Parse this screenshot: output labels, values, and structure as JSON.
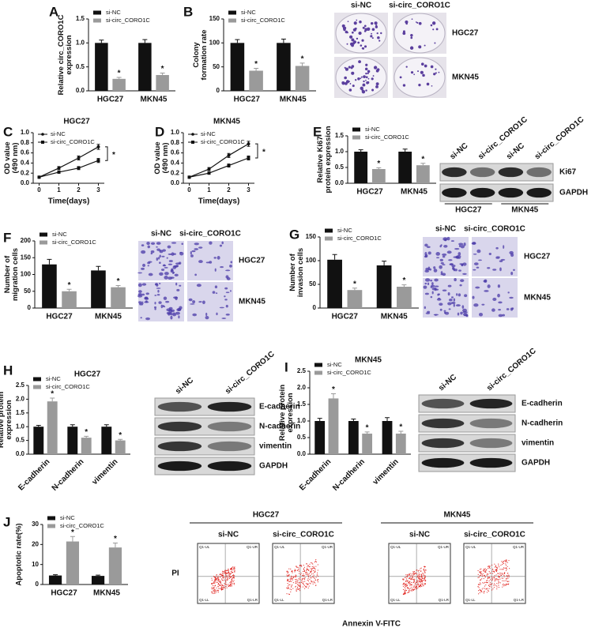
{
  "chart_data": [
    {
      "type": "bar",
      "panel": "A",
      "ylabel": "Relative circ_CORO1C expression",
      "categories": [
        "HGC27",
        "MKN45"
      ],
      "series": [
        {
          "name": "si-NC",
          "color": "#111111",
          "values": [
            1.0,
            1.0
          ],
          "errors": [
            0.06,
            0.07
          ]
        },
        {
          "name": "si-circ_CORO1C",
          "color": "#9a9a9a",
          "values": [
            0.25,
            0.33
          ],
          "errors": [
            0.03,
            0.04
          ]
        }
      ],
      "ylim": [
        0,
        1.5
      ],
      "yticks": [
        {
          "value": 0,
          "label": "0.0"
        },
        {
          "value": 0.5,
          "label": "0.5"
        },
        {
          "value": 1,
          "label": "1.0"
        },
        {
          "value": 1.5,
          "label": "1.5"
        }
      ],
      "significance": "*"
    },
    {
      "type": "bar",
      "panel": "B",
      "ylabel": "Colony formation rate",
      "categories": [
        "HGC27",
        "MKN45"
      ],
      "series": [
        {
          "name": "si-NC",
          "color": "#111111",
          "values": [
            100,
            100
          ],
          "errors": [
            7,
            8
          ]
        },
        {
          "name": "si-circ_CORO1C",
          "color": "#9a9a9a",
          "values": [
            42,
            52
          ],
          "errors": [
            5,
            6
          ]
        }
      ],
      "ylim": [
        0,
        150
      ],
      "yticks": [
        0,
        50,
        100,
        150
      ],
      "significance": "*"
    },
    {
      "type": "line",
      "panel": "C",
      "title": "HGC27",
      "xlabel": "Time(days)",
      "ylabel": "OD value (490 nm)",
      "x": [
        0,
        1,
        2,
        3
      ],
      "series": [
        {
          "name": "si-NC",
          "color": "#111111",
          "values": [
            0.12,
            0.3,
            0.5,
            0.72
          ],
          "errors": [
            0.01,
            0.03,
            0.04,
            0.05
          ]
        },
        {
          "name": "si-circ_CORO1C",
          "color": "#111111",
          "values": [
            0.12,
            0.22,
            0.3,
            0.45
          ],
          "errors": [
            0.01,
            0.02,
            0.03,
            0.04
          ]
        }
      ],
      "xlim": [
        -0.3,
        3.3
      ],
      "xticks": [
        0,
        1,
        2,
        3
      ],
      "ylim": [
        0,
        1.0
      ],
      "yticks": [
        {
          "value": 0,
          "label": "0.0"
        },
        {
          "value": 0.2,
          "label": "0.2"
        },
        {
          "value": 0.4,
          "label": "0.4"
        },
        {
          "value": 0.6,
          "label": "0.6"
        },
        {
          "value": 0.8,
          "label": "0.8"
        },
        {
          "value": 1,
          "label": "1.0"
        }
      ],
      "significance": "*"
    },
    {
      "type": "line",
      "panel": "D",
      "title": "MKN45",
      "xlabel": "Time(days)",
      "ylabel": "OD value (490 nm)",
      "x": [
        0,
        1,
        2,
        3
      ],
      "series": [
        {
          "name": "si-NC",
          "color": "#111111",
          "values": [
            0.12,
            0.28,
            0.55,
            0.78
          ],
          "errors": [
            0.01,
            0.03,
            0.04,
            0.05
          ]
        },
        {
          "name": "si-circ_CORO1C",
          "color": "#111111",
          "values": [
            0.12,
            0.2,
            0.35,
            0.5
          ],
          "errors": [
            0.01,
            0.02,
            0.03,
            0.04
          ]
        }
      ],
      "xlim": [
        -0.3,
        3.3
      ],
      "xticks": [
        0,
        1,
        2,
        3
      ],
      "ylim": [
        0,
        1.0
      ],
      "yticks": [
        {
          "value": 0,
          "label": "0.0"
        },
        {
          "value": 0.2,
          "label": "0.2"
        },
        {
          "value": 0.4,
          "label": "0.4"
        },
        {
          "value": 0.6,
          "label": "0.6"
        },
        {
          "value": 0.8,
          "label": "0.8"
        },
        {
          "value": 1,
          "label": "1.0"
        }
      ],
      "significance": "*"
    },
    {
      "type": "bar",
      "panel": "E",
      "ylabel": "Relative Ki67 protein expression",
      "categories": [
        "HGC27",
        "MKN45"
      ],
      "series": [
        {
          "name": "si-NC",
          "color": "#111111",
          "values": [
            1.0,
            1.0
          ],
          "errors": [
            0.06,
            0.08
          ]
        },
        {
          "name": "si-circ_CORO1C",
          "color": "#9a9a9a",
          "values": [
            0.45,
            0.57
          ],
          "errors": [
            0.04,
            0.06
          ]
        }
      ],
      "ylim": [
        0,
        1.5
      ],
      "yticks": [
        {
          "value": 0,
          "label": "0.0"
        },
        {
          "value": 0.5,
          "label": "0.5"
        },
        {
          "value": 1,
          "label": "1.0"
        },
        {
          "value": 1.5,
          "label": "1.5"
        }
      ],
      "significance": "*"
    },
    {
      "type": "bar",
      "panel": "F",
      "ylabel": "Number of migration cells",
      "categories": [
        "HGC27",
        "MKN45"
      ],
      "series": [
        {
          "name": "si-NC",
          "color": "#111111",
          "values": [
            130,
            112
          ],
          "errors": [
            15,
            12
          ]
        },
        {
          "name": "si-circ_CORO1C",
          "color": "#9a9a9a",
          "values": [
            50,
            62
          ],
          "errors": [
            6,
            5
          ]
        }
      ],
      "ylim": [
        0,
        200
      ],
      "yticks": [
        0,
        50,
        100,
        150,
        200
      ],
      "significance": "*"
    },
    {
      "type": "bar",
      "panel": "G",
      "ylabel": "Number of invasion cells",
      "categories": [
        "HGC27",
        "MKN45"
      ],
      "series": [
        {
          "name": "si-NC",
          "color": "#111111",
          "values": [
            102,
            90
          ],
          "errors": [
            11,
            9
          ]
        },
        {
          "name": "si-circ_CORO1C",
          "color": "#9a9a9a",
          "values": [
            38,
            45
          ],
          "errors": [
            4,
            4
          ]
        }
      ],
      "ylim": [
        0,
        150
      ],
      "yticks": [
        0,
        50,
        100,
        150
      ],
      "significance": "*"
    },
    {
      "type": "bar",
      "panel": "H",
      "title": "HGC27",
      "ylabel": "Relative protein expression",
      "categories": [
        "E-cadherin",
        "N-cadherin",
        "vimentin"
      ],
      "series": [
        {
          "name": "si-NC",
          "color": "#111111",
          "values": [
            1.0,
            1.0,
            1.0
          ],
          "errors": [
            0.05,
            0.07,
            0.07
          ]
        },
        {
          "name": "si-circ_CORO1C",
          "color": "#9a9a9a",
          "values": [
            1.92,
            0.6,
            0.5
          ],
          "errors": [
            0.12,
            0.05,
            0.04
          ]
        }
      ],
      "ylim": [
        0,
        2.5
      ],
      "yticks": [
        {
          "value": 0,
          "label": "0.0"
        },
        {
          "value": 0.5,
          "label": "0.5"
        },
        {
          "value": 1,
          "label": "1.0"
        },
        {
          "value": 1.5,
          "label": "1.5"
        },
        {
          "value": 2,
          "label": "2.0"
        },
        {
          "value": 2.5,
          "label": "2.5"
        }
      ],
      "significance": "*"
    },
    {
      "type": "bar",
      "panel": "I",
      "title": "MKN45",
      "ylabel": "Relative protein expression",
      "categories": [
        "E-cadherin",
        "N-cadherin",
        "vimentin"
      ],
      "series": [
        {
          "name": "si-NC",
          "color": "#111111",
          "values": [
            1.0,
            1.0,
            1.0
          ],
          "errors": [
            0.08,
            0.06,
            0.1
          ]
        },
        {
          "name": "si-circ_CORO1C",
          "color": "#9a9a9a",
          "values": [
            1.68,
            0.62,
            0.62
          ],
          "errors": [
            0.14,
            0.05,
            0.07
          ]
        }
      ],
      "ylim": [
        0,
        2.5
      ],
      "yticks": [
        {
          "value": 0,
          "label": "0.0"
        },
        {
          "value": 0.5,
          "label": "0.5"
        },
        {
          "value": 1,
          "label": "1.0"
        },
        {
          "value": 1.5,
          "label": "1.5"
        },
        {
          "value": 2,
          "label": "2.0"
        },
        {
          "value": 2.5,
          "label": "2.5"
        }
      ],
      "significance": "*"
    },
    {
      "type": "bar",
      "panel": "J",
      "ylabel": "Apoptotic rate(%)",
      "categories": [
        "HGC27",
        "MKN45"
      ],
      "series": [
        {
          "name": "si-NC",
          "color": "#111111",
          "values": [
            4.5,
            4.3
          ],
          "errors": [
            0.4,
            0.4
          ]
        },
        {
          "name": "si-circ_CORO1C",
          "color": "#9a9a9a",
          "values": [
            21.5,
            18.5
          ],
          "errors": [
            2.5,
            2.2
          ]
        }
      ],
      "ylim": [
        0,
        30
      ],
      "yticks": [
        0,
        10,
        20,
        30
      ],
      "significance": "*"
    }
  ],
  "image_panels": [
    {
      "kind": "plate",
      "columns": [
        "si-NC",
        "si-circ_CORO1C"
      ],
      "rows": [
        "HGC27",
        "MKN45"
      ]
    },
    {
      "kind": "blot",
      "columns": [
        "si-NC",
        "si-circ_CORO1C",
        "si-NC",
        "si-circ_CORO1C"
      ],
      "rows": [
        "Ki67",
        "GAPDH"
      ],
      "groups": [
        "HGC27",
        "MKN45"
      ]
    },
    {
      "kind": "stain",
      "columns": [
        "si-NC",
        "si-circ_CORO1C"
      ],
      "rows": [
        "HGC27",
        "MKN45"
      ]
    },
    {
      "kind": "stain",
      "columns": [
        "si-NC",
        "si-circ_CORO1C"
      ],
      "rows": [
        "HGC27",
        "MKN45"
      ]
    },
    {
      "kind": "blot",
      "columns": [
        "si-NC",
        "si-circ_CORO1C"
      ],
      "rows": [
        "E-cadherin",
        "N-cadherin",
        "vimentin",
        "GAPDH"
      ]
    },
    {
      "kind": "blot",
      "columns": [
        "si-NC",
        "si-circ_CORO1C"
      ],
      "rows": [
        "E-cadherin",
        "N-cadherin",
        "vimentin",
        "GAPDH"
      ]
    },
    {
      "kind": "flow",
      "groups": [
        "HGC27",
        "MKN45"
      ],
      "columns": [
        "si-NC",
        "si-circ_CORO1C"
      ],
      "xlabel": "Annexin V-FITC",
      "ylabel": "PI",
      "quadrants": [
        "Q1-UL",
        "Q1-UR",
        "Q1-LL",
        "Q1-LR"
      ]
    }
  ]
}
